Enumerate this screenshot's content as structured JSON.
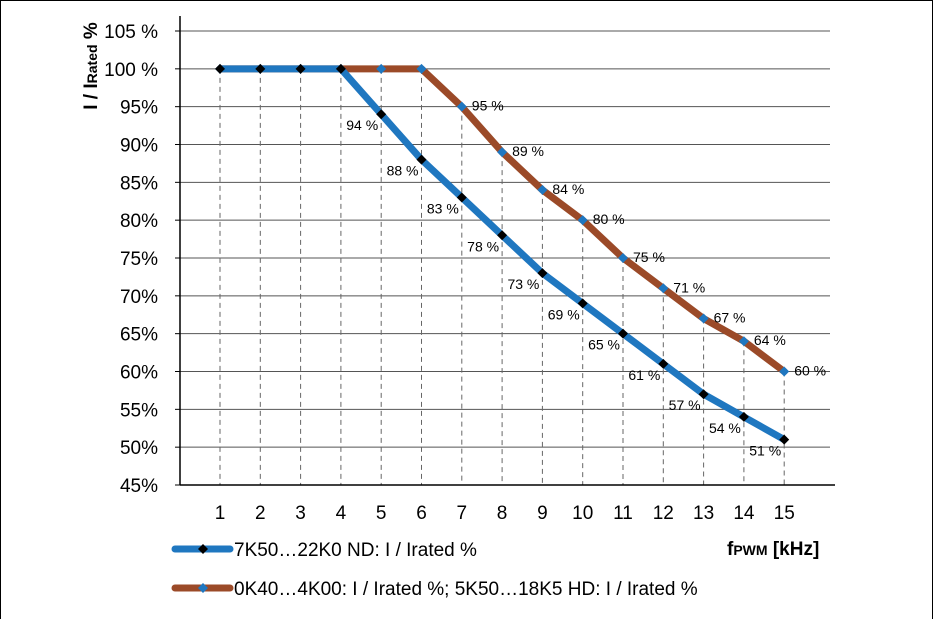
{
  "chart_data": {
    "type": "line",
    "ylabel": {
      "main": "I / I",
      "sub": "Rated",
      "suffix": " %"
    },
    "xlabel": {
      "main": "f",
      "sub": "PWM",
      "suffix": " [kHz]"
    },
    "x": [
      1,
      2,
      3,
      4,
      5,
      6,
      7,
      8,
      9,
      10,
      11,
      12,
      13,
      14,
      15
    ],
    "xlim": [
      0,
      16
    ],
    "ylim": [
      45,
      105
    ],
    "yticks": [
      {
        "value": 105,
        "label": "105 %"
      },
      {
        "value": 100,
        "label": "100 %"
      },
      {
        "value": 95,
        "label": "95%"
      },
      {
        "value": 90,
        "label": "90%"
      },
      {
        "value": 85,
        "label": "85%"
      },
      {
        "value": 80,
        "label": "80%"
      },
      {
        "value": 75,
        "label": "75%"
      },
      {
        "value": 70,
        "label": "70%"
      },
      {
        "value": 65,
        "label": "65%"
      },
      {
        "value": 60,
        "label": "60%"
      },
      {
        "value": 55,
        "label": "55%"
      },
      {
        "value": 50,
        "label": "50%"
      },
      {
        "value": 45,
        "label": "45%"
      }
    ],
    "xticks": [
      "1",
      "2",
      "3",
      "4",
      "5",
      "6",
      "7",
      "8",
      "9",
      "10",
      "11",
      "12",
      "13",
      "14",
      "15"
    ],
    "grid": "horizontal",
    "legend_position": "bottom-left",
    "series": [
      {
        "name": "7K50…22K0 ND: I / Irated %",
        "color": "#1f77c0",
        "marker_color": "#000000",
        "values": [
          100,
          100,
          100,
          100,
          94,
          88,
          83,
          78,
          73,
          69,
          65,
          61,
          57,
          54,
          51
        ],
        "data_labels": [
          "",
          "",
          "",
          "",
          "94 %",
          "88 %",
          "83 %",
          "78 %",
          "73 %",
          "69 %",
          "65 %",
          "61 %",
          "57 %",
          "54 %",
          "51 %"
        ]
      },
      {
        "name": "0K40…4K00: I / Irated %; 5K50…18K5 HD: I / Irated %",
        "color": "#9b4a28",
        "marker_color": "#1f77c0",
        "values": [
          100,
          100,
          100,
          100,
          100,
          100,
          95,
          89,
          84,
          80,
          75,
          71,
          67,
          64,
          60
        ],
        "data_labels": [
          "",
          "",
          "",
          "",
          "",
          "",
          "95 %",
          "89 %",
          "84 %",
          "80 %",
          "75 %",
          "71 %",
          "67 %",
          "64 %",
          "60 %"
        ]
      }
    ]
  }
}
